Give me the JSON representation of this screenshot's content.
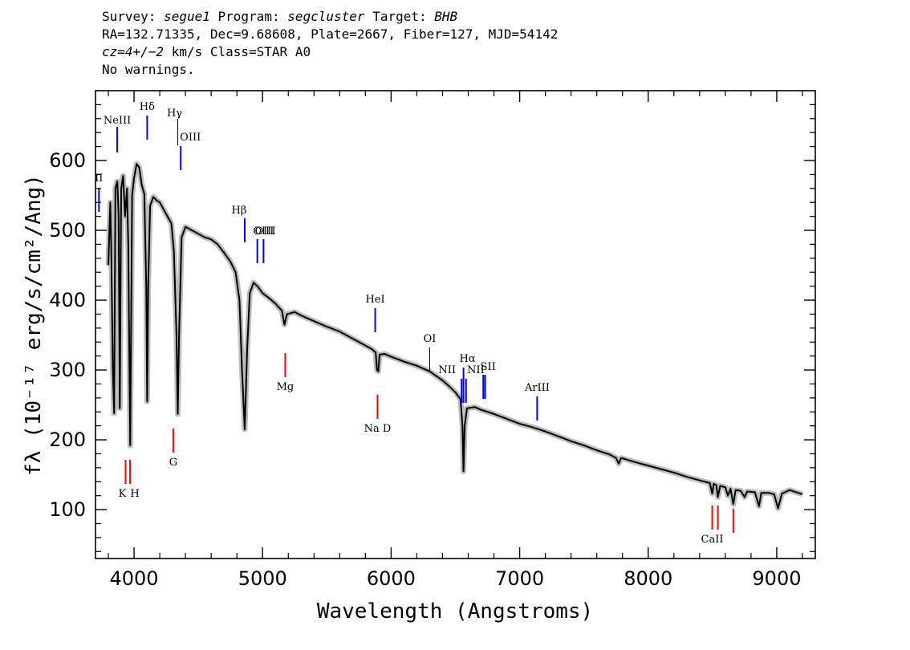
{
  "header": {
    "line1": {
      "survey_label": "Survey:",
      "survey": "segue1",
      "program_label": "Program:",
      "program": "segcluster",
      "target_label": "Target:",
      "target": "BHB"
    },
    "line2": "RA=132.71335, Dec=9.68608, Plate=2667, Fiber=127, MJD=54142",
    "line3": {
      "cz": "cz=4+/−2",
      "rest": " km/s Class=STAR A0"
    },
    "line4": "No warnings."
  },
  "chart_data": {
    "type": "line",
    "xlabel": "Wavelength (Angstroms)",
    "ylabel": "fλ (10⁻¹⁷ erg/s/cm²/Ang)",
    "xlim": [
      3700,
      9300
    ],
    "ylim": [
      30,
      700
    ],
    "x_ticks": [
      4000,
      5000,
      6000,
      7000,
      8000,
      9000
    ],
    "y_ticks": [
      100,
      200,
      300,
      400,
      500,
      600
    ],
    "grid": false,
    "colors": {
      "flux": "#000000",
      "error": "#bdbdbd",
      "emission": "#0000ff",
      "absorption": "#ff0000"
    },
    "series": [
      {
        "name": "flux",
        "points": [
          [
            3800,
            450
          ],
          [
            3815,
            540
          ],
          [
            3822,
            480
          ],
          [
            3835,
            300
          ],
          [
            3845,
            238
          ],
          [
            3855,
            560
          ],
          [
            3870,
            570
          ],
          [
            3880,
            520
          ],
          [
            3889,
            245
          ],
          [
            3900,
            560
          ],
          [
            3915,
            578
          ],
          [
            3930,
            520
          ],
          [
            3945,
            560
          ],
          [
            3955,
            480
          ],
          [
            3970,
            192
          ],
          [
            3985,
            550
          ],
          [
            4000,
            575
          ],
          [
            4020,
            595
          ],
          [
            4040,
            590
          ],
          [
            4060,
            565
          ],
          [
            4080,
            552
          ],
          [
            4095,
            420
          ],
          [
            4102,
            255
          ],
          [
            4110,
            420
          ],
          [
            4125,
            535
          ],
          [
            4150,
            548
          ],
          [
            4175,
            543
          ],
          [
            4200,
            540
          ],
          [
            4230,
            530
          ],
          [
            4260,
            520
          ],
          [
            4290,
            510
          ],
          [
            4310,
            470
          ],
          [
            4330,
            350
          ],
          [
            4340,
            237
          ],
          [
            4350,
            350
          ],
          [
            4370,
            490
          ],
          [
            4400,
            505
          ],
          [
            4450,
            500
          ],
          [
            4500,
            495
          ],
          [
            4550,
            490
          ],
          [
            4600,
            487
          ],
          [
            4650,
            480
          ],
          [
            4700,
            468
          ],
          [
            4750,
            455
          ],
          [
            4790,
            440
          ],
          [
            4820,
            400
          ],
          [
            4840,
            300
          ],
          [
            4861,
            215
          ],
          [
            4880,
            330
          ],
          [
            4900,
            410
          ],
          [
            4930,
            425
          ],
          [
            4960,
            420
          ],
          [
            5000,
            410
          ],
          [
            5050,
            403
          ],
          [
            5100,
            395
          ],
          [
            5150,
            385
          ],
          [
            5170,
            365
          ],
          [
            5190,
            380
          ],
          [
            5250,
            383
          ],
          [
            5300,
            378
          ],
          [
            5400,
            370
          ],
          [
            5500,
            362
          ],
          [
            5600,
            355
          ],
          [
            5700,
            345
          ],
          [
            5800,
            335
          ],
          [
            5850,
            330
          ],
          [
            5880,
            325
          ],
          [
            5890,
            300
          ],
          [
            5900,
            298
          ],
          [
            5910,
            322
          ],
          [
            5950,
            323
          ],
          [
            6000,
            319
          ],
          [
            6100,
            312
          ],
          [
            6200,
            306
          ],
          [
            6300,
            298
          ],
          [
            6400,
            285
          ],
          [
            6450,
            277
          ],
          [
            6500,
            268
          ],
          [
            6540,
            258
          ],
          [
            6555,
            220
          ],
          [
            6563,
            155
          ],
          [
            6572,
            220
          ],
          [
            6590,
            245
          ],
          [
            6650,
            247
          ],
          [
            6700,
            243
          ],
          [
            6800,
            237
          ],
          [
            6900,
            230
          ],
          [
            7000,
            223
          ],
          [
            7100,
            218
          ],
          [
            7200,
            212
          ],
          [
            7300,
            205
          ],
          [
            7400,
            198
          ],
          [
            7500,
            192
          ],
          [
            7600,
            185
          ],
          [
            7700,
            179
          ],
          [
            7750,
            174
          ],
          [
            7770,
            166
          ],
          [
            7790,
            174
          ],
          [
            7900,
            168
          ],
          [
            8000,
            163
          ],
          [
            8100,
            158
          ],
          [
            8200,
            153
          ],
          [
            8300,
            147
          ],
          [
            8400,
            142
          ],
          [
            8480,
            138
          ],
          [
            8498,
            123
          ],
          [
            8510,
            137
          ],
          [
            8530,
            135
          ],
          [
            8542,
            118
          ],
          [
            8560,
            134
          ],
          [
            8600,
            132
          ],
          [
            8620,
            120
          ],
          [
            8640,
            130
          ],
          [
            8662,
            108
          ],
          [
            8680,
            128
          ],
          [
            8720,
            127
          ],
          [
            8750,
            118
          ],
          [
            8770,
            126
          ],
          [
            8830,
            125
          ],
          [
            8862,
            105
          ],
          [
            8880,
            124
          ],
          [
            8940,
            124
          ],
          [
            8980,
            122
          ],
          [
            9010,
            102
          ],
          [
            9040,
            123
          ],
          [
            9100,
            128
          ],
          [
            9150,
            125
          ],
          [
            9200,
            122
          ]
        ]
      }
    ],
    "emission_lines": [
      {
        "label": "NeIII",
        "wave": 3869
      },
      {
        "label": "II",
        "wave": 3727
      },
      {
        "label": "Hδ",
        "wave": 4102
      },
      {
        "label": "Hγ",
        "wave": 4340
      },
      {
        "label": "OIII",
        "wave": 4363
      },
      {
        "label": "Hβ",
        "wave": 4861
      },
      {
        "label": "OIII",
        "wave": 4959
      },
      {
        "label": "OIII",
        "wave": 5007
      },
      {
        "label": "HeI",
        "wave": 5876
      },
      {
        "label": "OI",
        "wave": 6300
      },
      {
        "label": "NII",
        "wave": 6548
      },
      {
        "label": "Hα",
        "wave": 6563
      },
      {
        "label": "NII",
        "wave": 6583
      },
      {
        "label": "SII",
        "wave": 6717
      },
      {
        "label": "SII",
        "wave": 6731
      },
      {
        "label": "ArIII",
        "wave": 7136
      }
    ],
    "absorption_lines": [
      {
        "label": "K",
        "wave": 3934
      },
      {
        "label": "H",
        "wave": 3969
      },
      {
        "label": "G",
        "wave": 4305
      },
      {
        "label": "Mg",
        "wave": 5176
      },
      {
        "label": "Na D",
        "wave": 5894
      },
      {
        "label": "CaII",
        "wave": 8498
      },
      {
        "label": "CaII",
        "wave": 8542
      },
      {
        "label": "CaII",
        "wave": 8662
      }
    ]
  }
}
